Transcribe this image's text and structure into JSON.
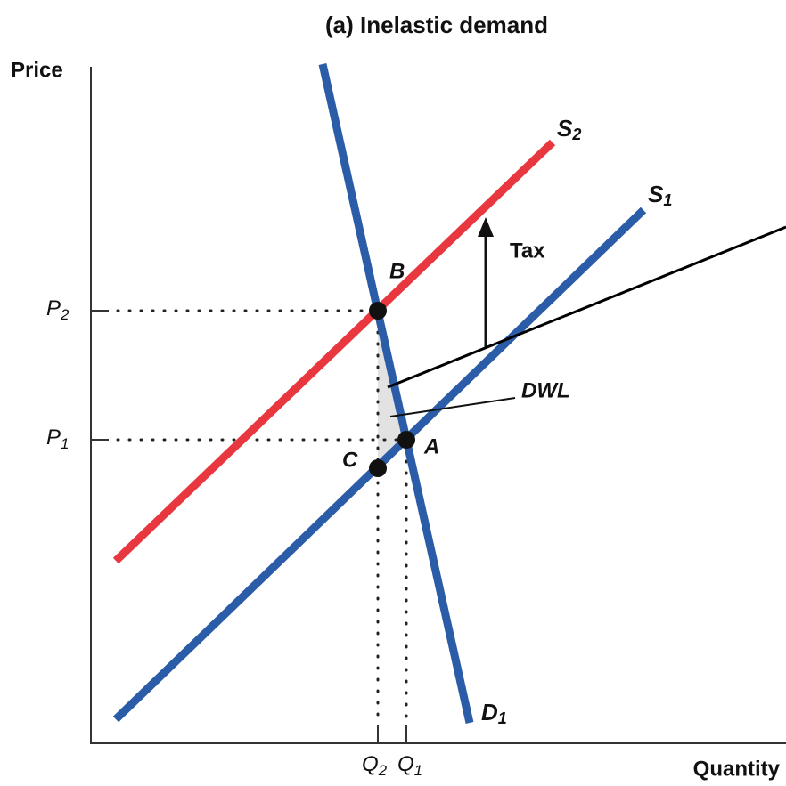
{
  "title": "(a) Inelastic demand",
  "axes": {
    "y_label": "Price",
    "x_label": "Quantity"
  },
  "curves": {
    "supply_2": {
      "symbol": "S",
      "sub": "2"
    },
    "supply_1": {
      "symbol": "S",
      "sub": "1"
    },
    "demand_1": {
      "symbol": "D",
      "sub": "1"
    }
  },
  "points": {
    "B": "B",
    "A": "A",
    "C": "C"
  },
  "annotations": {
    "tax": "Tax",
    "dwl": "DWL"
  },
  "price_ticks": [
    {
      "symbol": "P",
      "sub": "2"
    },
    {
      "symbol": "P",
      "sub": "1"
    }
  ],
  "quantity_ticks": [
    {
      "symbol": "Q",
      "sub": "2"
    },
    {
      "symbol": "Q",
      "sub": "1"
    }
  ]
}
